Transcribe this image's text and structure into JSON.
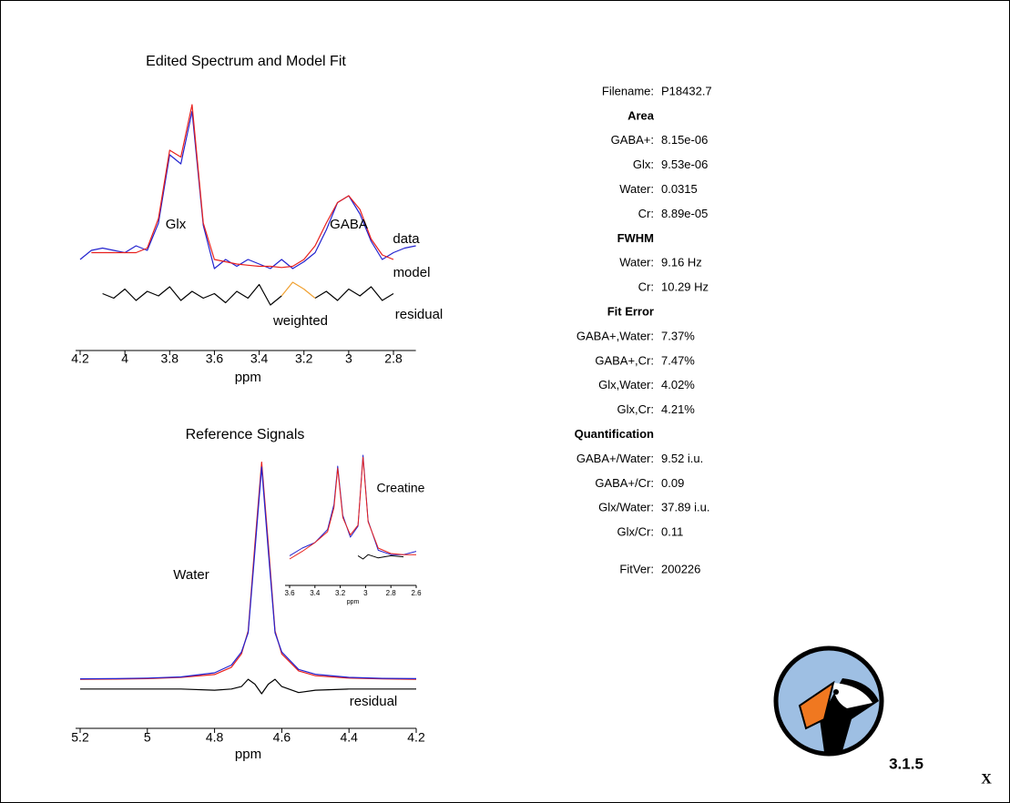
{
  "chart_data": [
    {
      "type": "line",
      "title": "Edited Spectrum and Model Fit",
      "x_label": "ppm",
      "x": [
        4.2,
        4.15,
        4.1,
        4.05,
        4.0,
        3.95,
        3.9,
        3.85,
        3.8,
        3.75,
        3.7,
        3.65,
        3.6,
        3.55,
        3.5,
        3.45,
        3.4,
        3.35,
        3.3,
        3.25,
        3.2,
        3.15,
        3.1,
        3.05,
        3.0,
        2.95,
        2.9,
        2.85,
        2.8,
        2.75,
        2.7
      ],
      "xlim": [
        4.2,
        2.7
      ],
      "xticks": [
        4.2,
        4,
        3.8,
        3.6,
        3.4,
        3.2,
        3,
        2.8
      ],
      "ylim": [
        0,
        10
      ],
      "annotations": [
        "Glx",
        "GABA"
      ],
      "series": [
        {
          "name": "data",
          "color": "#2323cf",
          "values": [
            3.0,
            3.4,
            3.5,
            3.4,
            3.3,
            3.6,
            3.4,
            4.6,
            7.6,
            7.2,
            9.5,
            4.5,
            2.6,
            3.0,
            2.7,
            3.0,
            2.8,
            2.6,
            3.0,
            2.6,
            2.9,
            3.3,
            4.3,
            5.5,
            5.8,
            5.0,
            3.8,
            3.0,
            3.3,
            3.5,
            3.6
          ]
        },
        {
          "name": "model",
          "color": "#e8201c",
          "values": [
            null,
            3.3,
            3.3,
            3.3,
            3.3,
            3.3,
            3.5,
            4.8,
            7.8,
            7.5,
            9.8,
            4.6,
            3.0,
            2.9,
            2.8,
            2.75,
            2.7,
            2.7,
            2.65,
            2.7,
            3.0,
            3.6,
            4.6,
            5.5,
            5.8,
            5.2,
            3.9,
            3.2,
            3.0,
            null,
            null
          ]
        },
        {
          "name": "residual",
          "color": "#000000",
          "values": [
            null,
            null,
            1.5,
            1.3,
            1.7,
            1.2,
            1.6,
            1.4,
            1.8,
            1.2,
            1.6,
            1.3,
            1.5,
            1.1,
            1.6,
            1.3,
            1.9,
            1.0,
            1.4,
            null,
            null,
            1.3,
            1.6,
            1.2,
            1.7,
            1.4,
            1.8,
            1.2,
            1.5,
            null,
            null
          ]
        },
        {
          "name": "weighted",
          "color": "#f0a030",
          "values": [
            null,
            null,
            null,
            null,
            null,
            null,
            null,
            null,
            null,
            null,
            null,
            null,
            null,
            null,
            null,
            null,
            null,
            null,
            1.4,
            2.0,
            1.7,
            1.3,
            null,
            null,
            null,
            null,
            null,
            null,
            null,
            null,
            null
          ]
        }
      ]
    },
    {
      "type": "line",
      "title": "Reference Signals",
      "x_label": "ppm",
      "x": [
        5.2,
        5.1,
        5.0,
        4.9,
        4.8,
        4.75,
        4.72,
        4.7,
        4.68,
        4.66,
        4.64,
        4.62,
        4.6,
        4.55,
        4.5,
        4.4,
        4.3,
        4.2
      ],
      "xlim": [
        5.2,
        4.2
      ],
      "xticks": [
        5.2,
        5,
        4.8,
        4.6,
        4.4,
        4.2
      ],
      "ylim": [
        0,
        10
      ],
      "annotations": [
        "Water"
      ],
      "series": [
        {
          "color": "#e8201c",
          "values": [
            0.9,
            0.91,
            0.93,
            0.98,
            1.1,
            1.4,
            1.95,
            2.9,
            6.5,
            9.9,
            6.5,
            2.9,
            1.95,
            1.25,
            1.05,
            0.95,
            0.92,
            0.9
          ]
        },
        {
          "color": "#2323cf",
          "values": [
            0.92,
            0.93,
            0.95,
            1.0,
            1.17,
            1.49,
            2.03,
            2.83,
            6.23,
            9.7,
            6.23,
            2.83,
            2.03,
            1.31,
            1.11,
            0.98,
            0.94,
            0.93
          ]
        },
        {
          "name": "residual",
          "color": "#000000",
          "values": [
            0.5,
            0.5,
            0.5,
            0.5,
            0.45,
            0.5,
            0.6,
            0.9,
            0.7,
            0.3,
            0.7,
            0.9,
            0.6,
            0.35,
            0.45,
            0.5,
            0.5,
            0.5
          ]
        }
      ]
    },
    {
      "type": "line",
      "x_label": "ppm",
      "x": [
        3.6,
        3.5,
        3.4,
        3.3,
        3.25,
        3.22,
        3.18,
        3.12,
        3.06,
        3.02,
        2.98,
        2.9,
        2.8,
        2.7,
        2.6
      ],
      "xlim": [
        3.6,
        2.6
      ],
      "xticks": [
        3.6,
        3.4,
        3.2,
        3,
        2.8,
        2.6
      ],
      "ylim": [
        0,
        10
      ],
      "annotations": [
        "Creatine"
      ],
      "series": [
        {
          "color": "#2323cf",
          "values": [
            0.8,
            1.5,
            2.0,
            3.2,
            5.5,
            9.0,
            4.5,
            2.5,
            3.5,
            10,
            4,
            1.3,
            0.9,
            0.9,
            1.2
          ]
        },
        {
          "color": "#e8201c",
          "values": [
            0.5,
            1.2,
            2.0,
            3.0,
            5.2,
            8.8,
            4.3,
            2.7,
            3.6,
            9.8,
            3.9,
            1.5,
            1.0,
            0.9,
            0.9
          ]
        },
        {
          "color": "#000000",
          "values": [
            null,
            null,
            null,
            null,
            null,
            null,
            null,
            null,
            0.8,
            0.5,
            0.9,
            0.6,
            0.8,
            0.7,
            null
          ]
        }
      ]
    }
  ],
  "info": [
    {
      "label": "Filename:",
      "value": "P18432.7"
    },
    {
      "heading": "Area"
    },
    {
      "label": "GABA+:",
      "value": "8.15e-06"
    },
    {
      "label": "Glx:",
      "value": "9.53e-06"
    },
    {
      "label": "Water:",
      "value": "0.0315"
    },
    {
      "label": "Cr:",
      "value": "8.89e-05"
    },
    {
      "heading": "FWHM"
    },
    {
      "label": "Water:",
      "value": "9.16 Hz"
    },
    {
      "label": "Cr:",
      "value": "10.29 Hz"
    },
    {
      "heading": "Fit Error"
    },
    {
      "label": "GABA+,Water:",
      "value": "7.37%"
    },
    {
      "label": "GABA+,Cr:",
      "value": "7.47%"
    },
    {
      "label": "Glx,Water:",
      "value": "4.02%"
    },
    {
      "label": "Glx,Cr:",
      "value": "4.21%"
    },
    {
      "heading": "Quantification"
    },
    {
      "label": "GABA+/Water:",
      "value": "9.52 i.u."
    },
    {
      "label": "GABA+/Cr:",
      "value": "0.09"
    },
    {
      "label": "Glx/Water:",
      "value": "37.89 i.u."
    },
    {
      "label": "Glx/Cr:",
      "value": "0.11"
    },
    {
      "label": "FitVer:",
      "value": "200226"
    }
  ],
  "version": "3.1.5",
  "close": "X"
}
